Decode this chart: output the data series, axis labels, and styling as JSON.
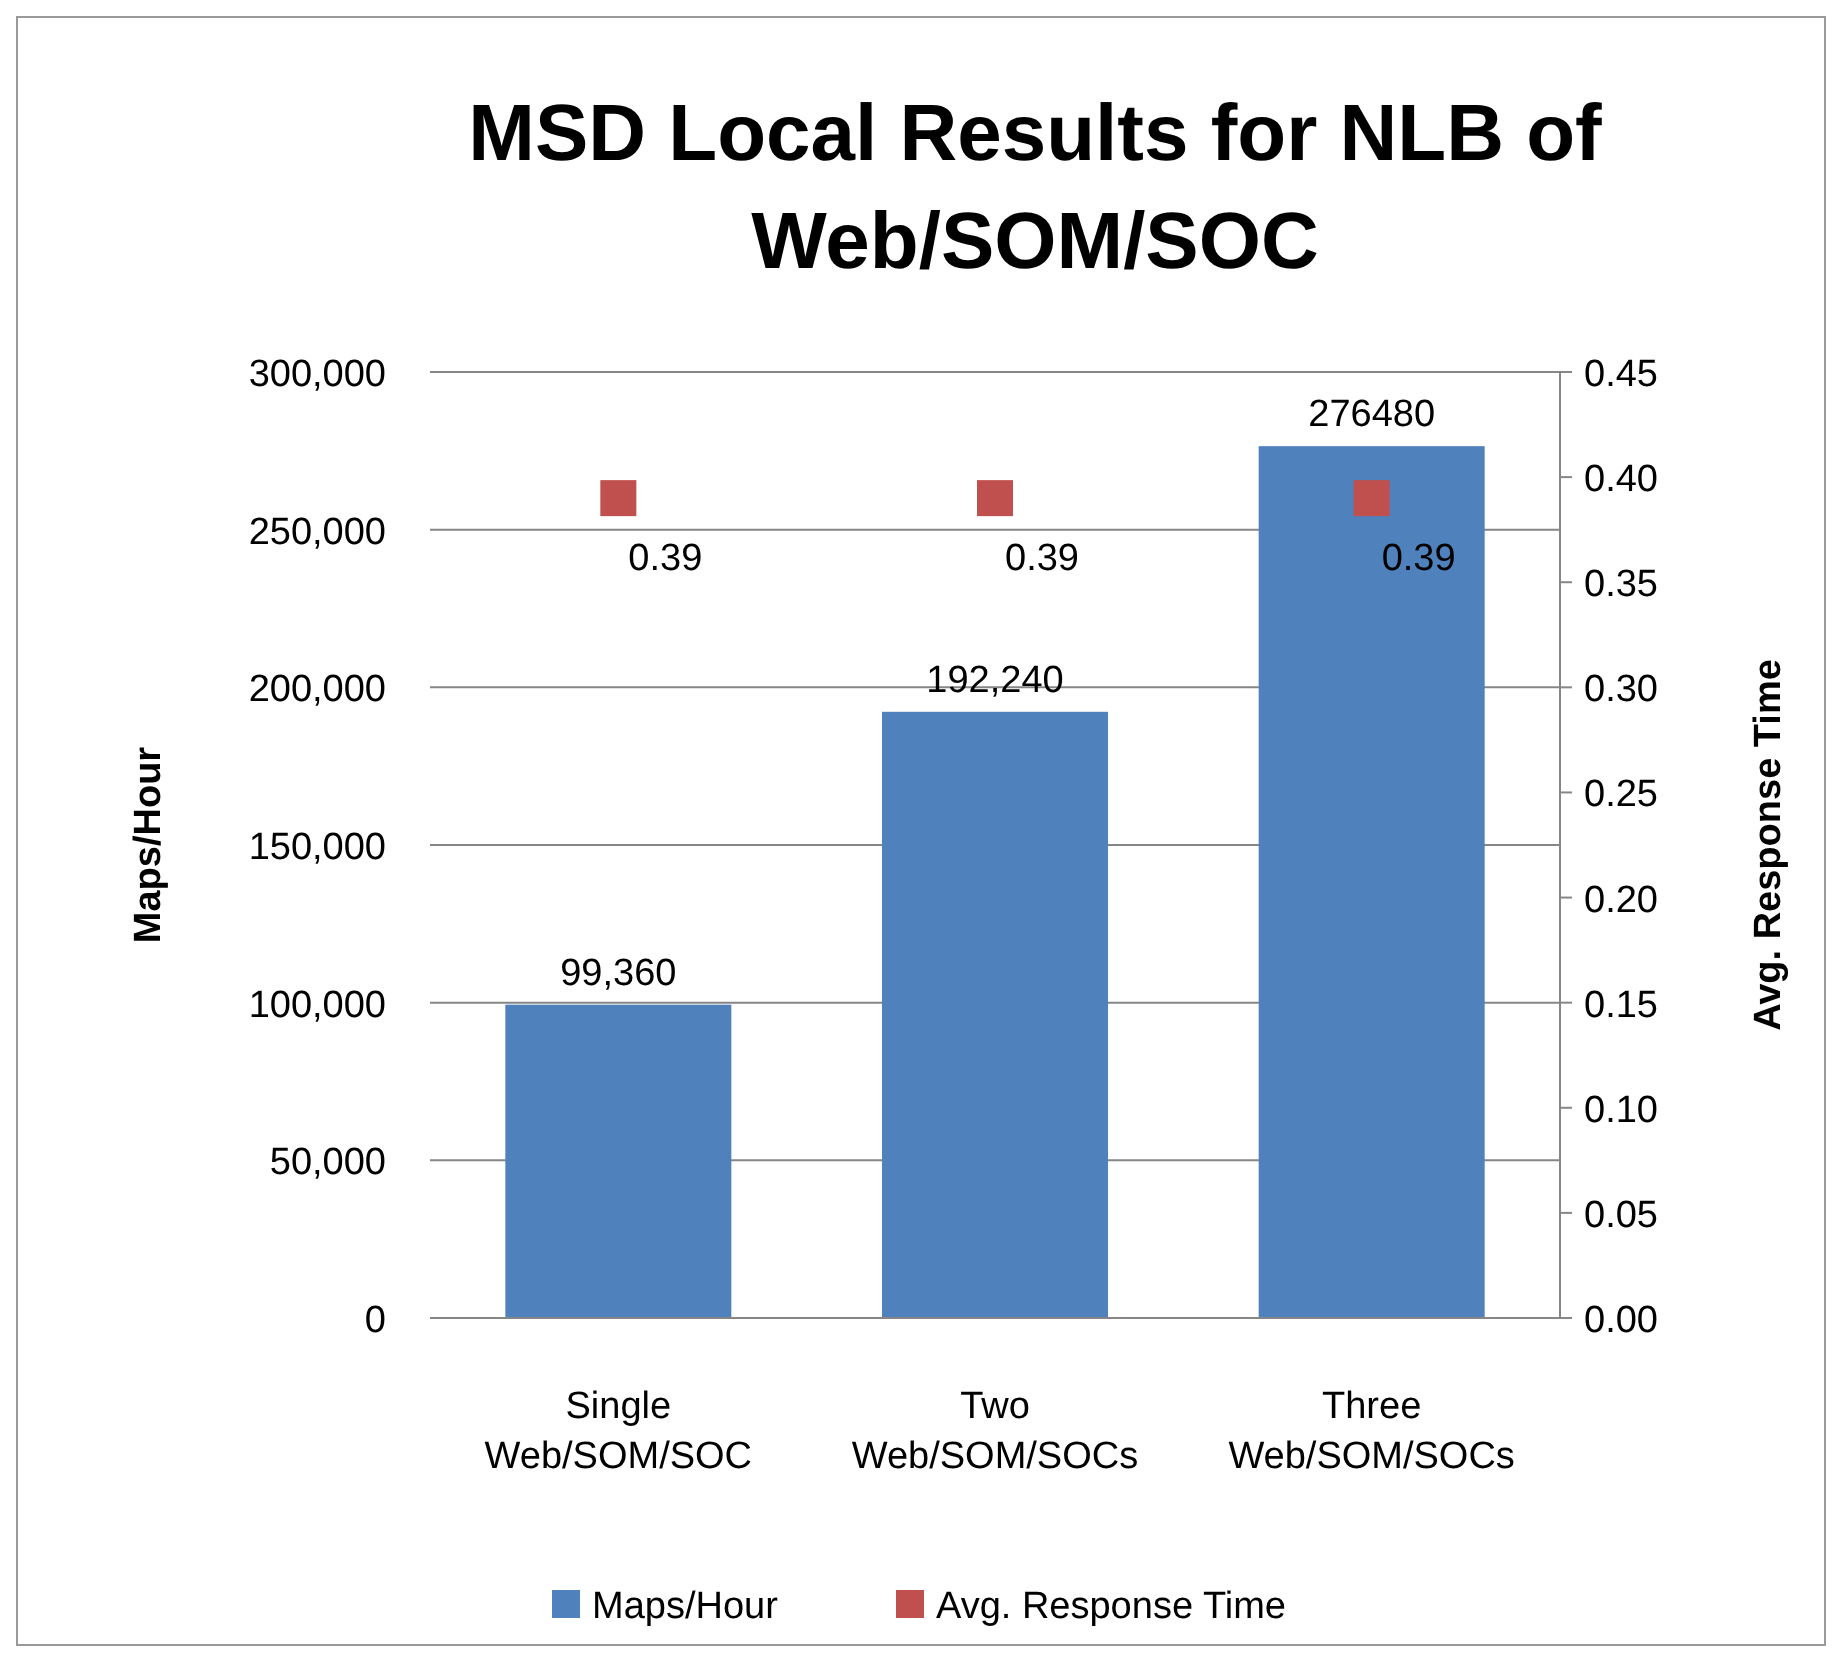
{
  "chart_data": {
    "type": "bar",
    "title": "MSD Local Results for NLB of Web/SOM/SOC",
    "ylabel": "Maps/Hour",
    "y2label": "Avg. Response Time",
    "categories": [
      "Single\nWeb/SOM/SOC",
      "Two\nWeb/SOM/SOCs",
      "Three\nWeb/SOM/SOCs"
    ],
    "series": [
      {
        "name": "Maps/Hour",
        "color": "#4f81bd",
        "values": [
          99360,
          192240,
          276480
        ],
        "value_labels": [
          "99,360",
          "192,240",
          "276480"
        ]
      },
      {
        "name": "Avg. Response Time",
        "type": "scatter",
        "axis": "y2",
        "color": "#c0504d",
        "marker": "square",
        "values": [
          0.39,
          0.39,
          0.39
        ],
        "value_labels": [
          "0.39",
          "0.39",
          "0.39"
        ]
      }
    ],
    "ylim": [
      0,
      300000
    ],
    "yticks": [
      {
        "value": 0,
        "label": "0"
      },
      {
        "value": 50000,
        "label": "50,000"
      },
      {
        "value": 100000,
        "label": "100,000"
      },
      {
        "value": 150000,
        "label": "150,000"
      },
      {
        "value": 200000,
        "label": "200,000"
      },
      {
        "value": 250000,
        "label": "250,000"
      },
      {
        "value": 300000,
        "label": "300,000"
      }
    ],
    "y2lim": [
      0,
      0.45
    ],
    "y2ticks": [
      {
        "value": 0,
        "label": "0.00"
      },
      {
        "value": 0.05,
        "label": "0.05"
      },
      {
        "value": 0.1,
        "label": "0.10"
      },
      {
        "value": 0.15,
        "label": "0.15"
      },
      {
        "value": 0.2,
        "label": "0.20"
      },
      {
        "value": 0.25,
        "label": "0.25"
      },
      {
        "value": 0.3,
        "label": "0.30"
      },
      {
        "value": 0.35,
        "label": "0.35"
      },
      {
        "value": 0.4,
        "label": "0.40"
      },
      {
        "value": 0.45,
        "label": "0.45"
      }
    ],
    "grid": "y",
    "legend": "bottom"
  }
}
